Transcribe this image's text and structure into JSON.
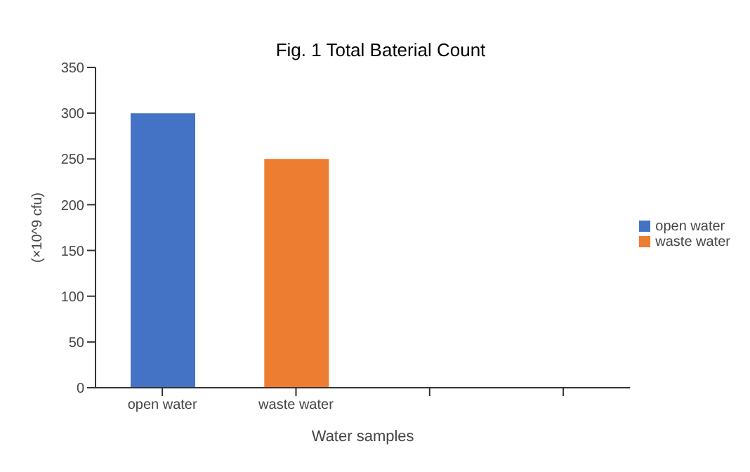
{
  "chart_data": {
    "type": "bar",
    "title": "Fig. 1 Total Baterial Count",
    "xlabel": "Water samples",
    "ylabel": "(×10^9 cfu)",
    "categories": [
      "open water",
      "waste water",
      null,
      null
    ],
    "series": [
      {
        "name": "open water",
        "color": "#4472c4",
        "values": [
          300,
          null,
          null,
          null
        ]
      },
      {
        "name": "waste water",
        "color": "#ed7d31",
        "values": [
          null,
          250,
          null,
          null
        ]
      }
    ],
    "stacked": true,
    "ylim": [
      0,
      350
    ],
    "yticks": [
      0,
      50,
      100,
      150,
      200,
      250,
      300,
      350
    ],
    "grid": false,
    "legend": "right"
  }
}
